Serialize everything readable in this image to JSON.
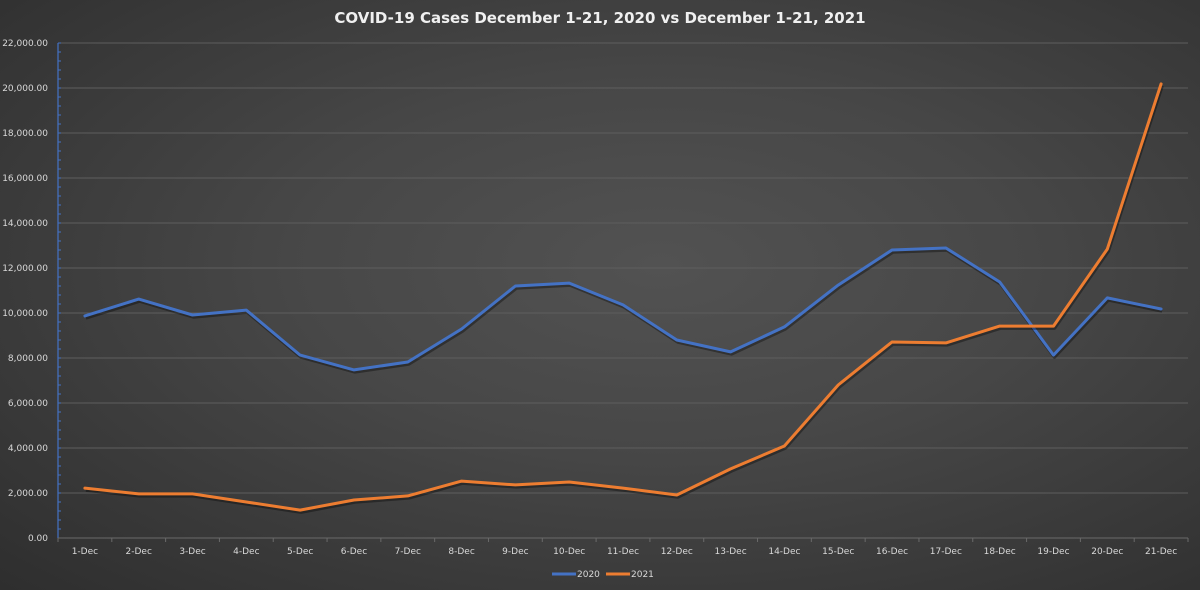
{
  "chart_data": {
    "type": "line",
    "title": "COVID-19 Cases December 1-21, 2020 vs December 1-21, 2021",
    "xlabel": "",
    "ylabel": "",
    "ylim": [
      0,
      22000
    ],
    "yticks": [
      "0.00",
      "2,000.00",
      "4,000.00",
      "6,000.00",
      "8,000.00",
      "10,000.00",
      "12,000.00",
      "14,000.00",
      "16,000.00",
      "18,000.00",
      "20,000.00",
      "22,000.00"
    ],
    "ytick_values": [
      0,
      2000,
      4000,
      6000,
      8000,
      10000,
      12000,
      14000,
      16000,
      18000,
      20000,
      22000
    ],
    "grid": true,
    "legend_position": "bottom",
    "categories": [
      "1-Dec",
      "2-Dec",
      "3-Dec",
      "4-Dec",
      "5-Dec",
      "6-Dec",
      "7-Dec",
      "8-Dec",
      "9-Dec",
      "10-Dec",
      "11-Dec",
      "12-Dec",
      "13-Dec",
      "14-Dec",
      "15-Dec",
      "16-Dec",
      "17-Dec",
      "18-Dec",
      "19-Dec",
      "20-Dec",
      "21-Dec"
    ],
    "series": [
      {
        "name": "2020",
        "color": "#4472c4",
        "values": [
          9870,
          10620,
          9910,
          10130,
          8130,
          7470,
          7820,
          9290,
          11200,
          11330,
          10360,
          8800,
          8270,
          9380,
          11240,
          12800,
          12890,
          11380,
          8130,
          10670,
          10180
        ]
      },
      {
        "name": "2021",
        "color": "#ed7d31",
        "values": [
          2220,
          1960,
          1960,
          1600,
          1240,
          1690,
          1870,
          2530,
          2360,
          2490,
          2220,
          1910,
          3070,
          4090,
          6800,
          8710,
          8670,
          9420,
          9420,
          12840,
          20180
        ]
      }
    ]
  }
}
